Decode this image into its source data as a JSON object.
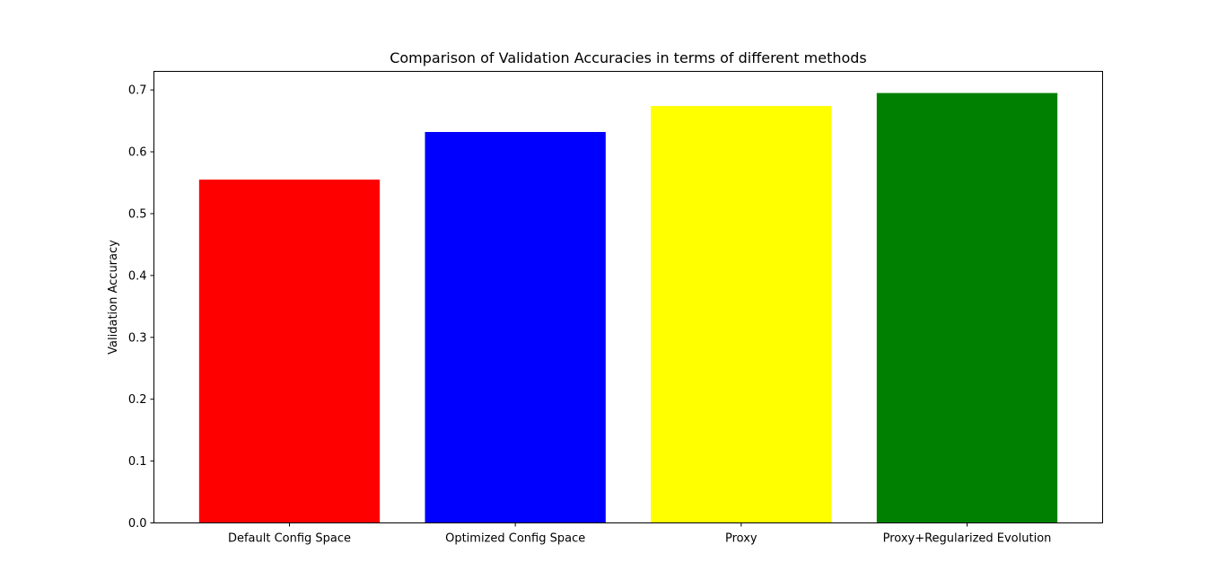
{
  "chart_data": {
    "type": "bar",
    "title": "Comparison of Validation Accuracies in terms of different methods",
    "xlabel": "",
    "ylabel": "Validation Accuracy",
    "categories": [
      "Default Config Space",
      "Optimized Config Space",
      "Proxy",
      "Proxy+Regularized Evolution"
    ],
    "values": [
      0.555,
      0.632,
      0.674,
      0.695
    ],
    "colors": [
      "#ff0000",
      "#0000ff",
      "#ffff00",
      "#008000"
    ],
    "ylim": [
      0,
      0.73
    ],
    "yticks": [
      0.0,
      0.1,
      0.2,
      0.3,
      0.4,
      0.5,
      0.6,
      0.7
    ],
    "ytick_labels": [
      "0.0",
      "0.1",
      "0.2",
      "0.3",
      "0.4",
      "0.5",
      "0.6",
      "0.7"
    ],
    "grid": false,
    "legend": "none"
  }
}
